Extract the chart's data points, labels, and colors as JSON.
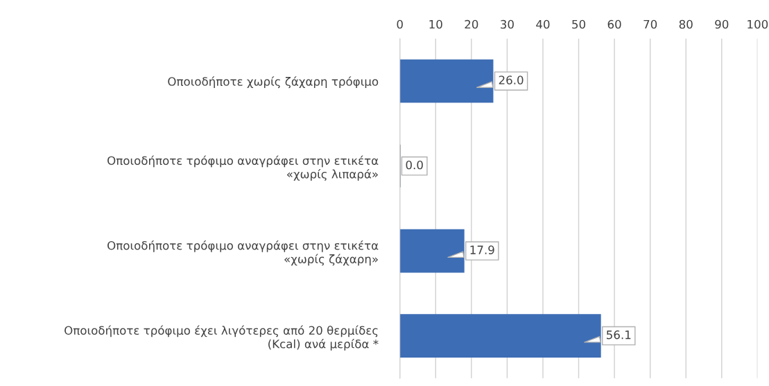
{
  "chart_data": {
    "type": "bar",
    "orientation": "horizontal",
    "categories": [
      "Οποιοδήποτε χωρίς ζάχαρη τρόφιμο",
      "Οποιοδήποτε τρόφιμο αναγράφει στην ετικέτα\n«χωρίς λιπαρά»",
      "Οποιοδήποτε τρόφιμο αναγράφει στην ετικέτα\n«χωρίς ζάχαρη»",
      "Οποιοδήποτε τρόφιμο έχει λιγότερες από 20 θερμίδες\n(Kcal) ανά μερίδα *"
    ],
    "values": [
      26.0,
      0.0,
      17.9,
      56.1
    ],
    "value_labels": [
      "26.0",
      "0.0",
      "17.9",
      "56.1"
    ],
    "colors": [
      "#3d6db5",
      "#1c2a40",
      "#3d6db5",
      "#3d6db5"
    ],
    "xlim": [
      0,
      100
    ],
    "xticks": [
      0,
      10,
      20,
      30,
      40,
      50,
      60,
      70,
      80,
      90,
      100
    ],
    "grid": "x",
    "legend": false
  }
}
